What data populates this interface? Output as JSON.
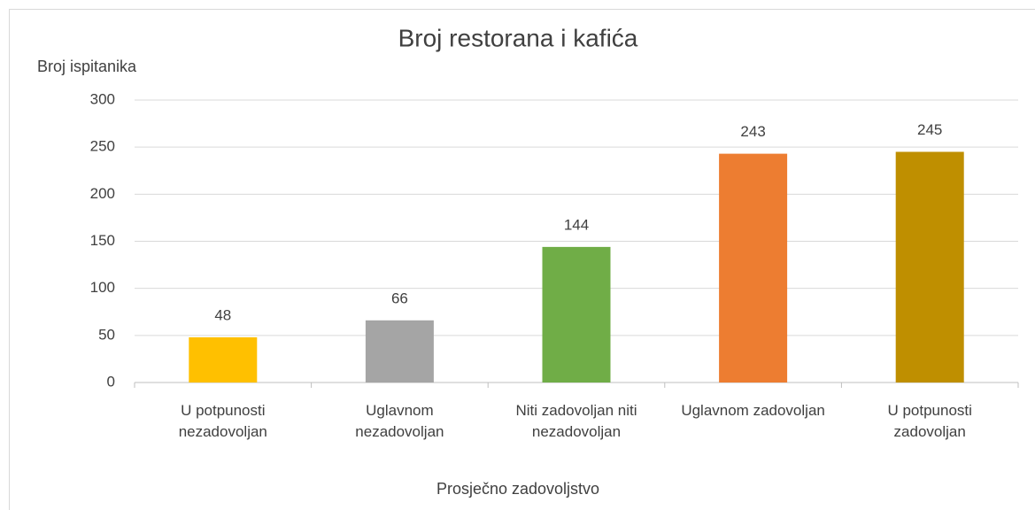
{
  "chart_data": {
    "type": "bar",
    "title": "Broj restorana i kafića",
    "y_label": "Broj ispitanika",
    "x_label": "Prosječno zadovoljstvo",
    "categories": [
      "U potpunosti nezadovoljan",
      "Uglavnom nezadovoljan",
      "Niti zadovoljan niti nezadovoljan",
      "Uglavnom zadovoljan",
      "U potpunosti zadovoljan"
    ],
    "values": [
      48,
      66,
      144,
      243,
      245
    ],
    "colors": [
      "#ffc000",
      "#a5a5a5",
      "#70ad47",
      "#ed7d31",
      "#bf8f00"
    ],
    "ylim": [
      0,
      300
    ],
    "yticks": [
      0,
      50,
      100,
      150,
      200,
      250,
      300
    ],
    "grid": true
  }
}
